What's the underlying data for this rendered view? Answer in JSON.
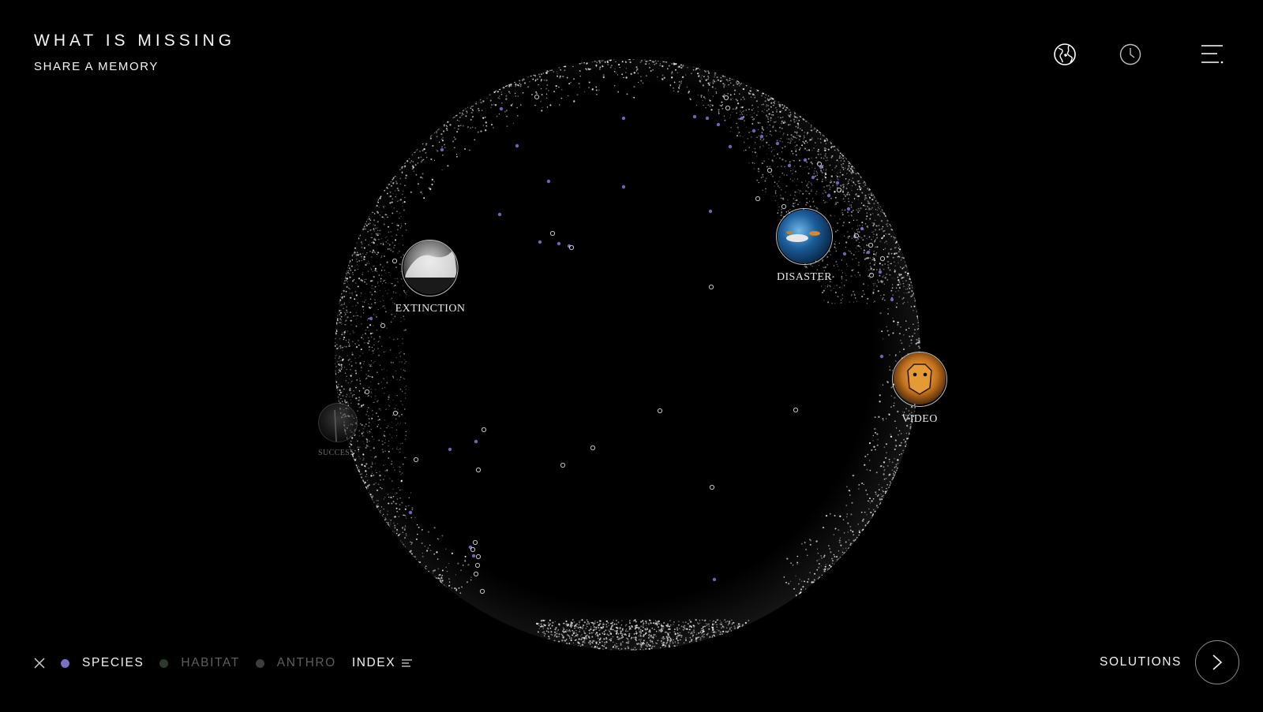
{
  "header": {
    "title": "WHAT IS MISSING",
    "subtitle": "SHARE A MEMORY"
  },
  "toolbar": {
    "icons": [
      "globe-icon",
      "clock-icon",
      "menu-icon"
    ]
  },
  "globe": {
    "hotspots": [
      {
        "label": "EXTINCTION",
        "thumb": "tsunami-photo"
      },
      {
        "label": "DISASTER",
        "thumb": "underwater-photo"
      },
      {
        "label": "VIDEO",
        "thumb": "tiger-photo"
      },
      {
        "label": "SUCCESS",
        "thumb": "forest-photo"
      }
    ]
  },
  "filters": {
    "close_icon": "close-icon",
    "items": [
      {
        "label": "SPECIES",
        "color": "#7a70c8",
        "active": true
      },
      {
        "label": "HABITAT",
        "color": "#2c3a2e",
        "active": false
      },
      {
        "label": "ANTHRO",
        "color": "#3d3d3d",
        "active": false
      }
    ],
    "index_label": "INDEX"
  },
  "solutions": {
    "label": "SOLUTIONS"
  },
  "colors": {
    "background": "#000000",
    "text": "#f2f2f2",
    "species": "#7a70c8",
    "inactive_text": "#5e5e5e"
  }
}
